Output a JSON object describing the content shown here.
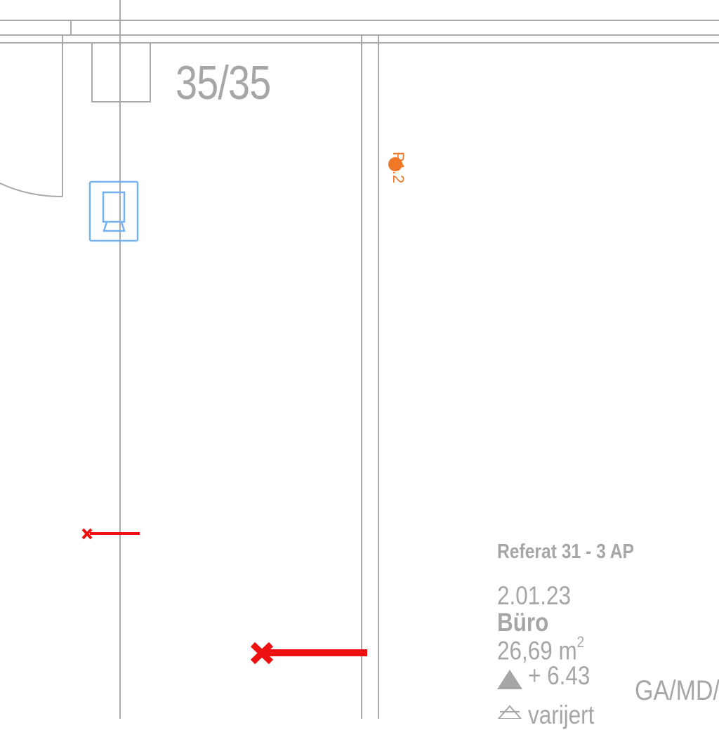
{
  "plan": {
    "door_id": "35/35",
    "point_marker": {
      "label": "P1.2",
      "color": "#f07826"
    },
    "room": {
      "department": "Referat 31 -  3 AP",
      "number": "2.01.23",
      "name": "Büro",
      "area_value": "26,69 m",
      "area_unit_exponent": "2",
      "level_marker": "+ 6.43",
      "height": "varijert",
      "code": "GA/MD/"
    },
    "colors": {
      "wall_lines": "#a9a9a9",
      "label_text": "#a6a6a6",
      "fixture_blue": "#74b2f0",
      "demolition_red": "#ee1111",
      "point_orange": "#f07826"
    },
    "icons": [
      "wall-outlet-icon",
      "demolition-cross-icon",
      "level-triangle-icon",
      "height-triangle-icon"
    ]
  }
}
